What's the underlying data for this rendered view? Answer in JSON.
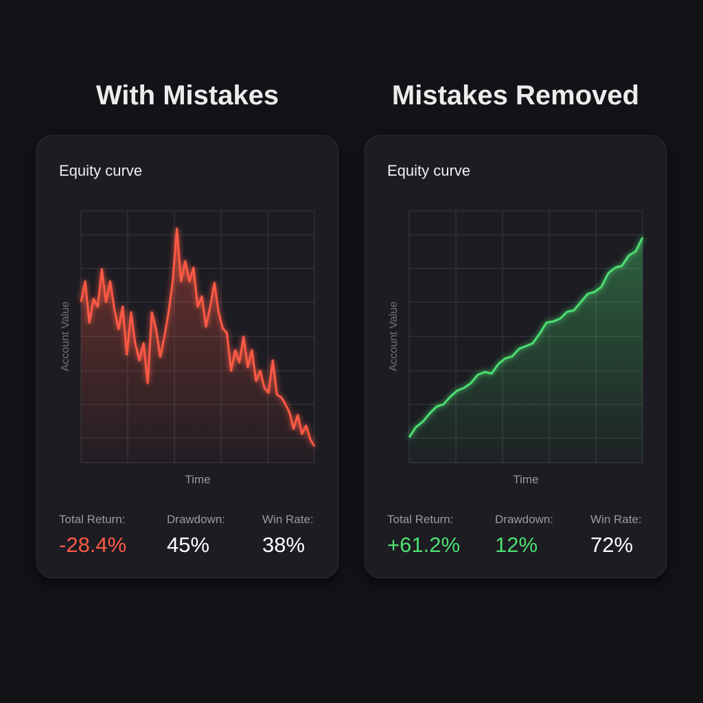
{
  "chart_data": [
    {
      "type": "line",
      "title": "With Mistakes",
      "subtitle": "Equity curve",
      "xlabel": "Time",
      "ylabel": "Account Value",
      "color": "#ff5a45",
      "ylim": [
        0,
        100
      ],
      "values": [
        63.8,
        72,
        55.6,
        65,
        62,
        76.8,
        63.8,
        72,
        61,
        53,
        62,
        43,
        59.7,
        47.4,
        40.6,
        47.4,
        31.6,
        59.7,
        53,
        42,
        50,
        59.7,
        72,
        92.9,
        72,
        80,
        72,
        77.4,
        62,
        66,
        54,
        62,
        71.4,
        59.7,
        53.4,
        51.5,
        36.5,
        44.7,
        39.8,
        50,
        37.9,
        44.7,
        32.4,
        36.5,
        29.7,
        27.8,
        40.6,
        27,
        26,
        23.4,
        20,
        13.4,
        18.9,
        11.4,
        14.7,
        9.3,
        6.5
      ],
      "stats": [
        {
          "label": "Total Return:",
          "value": "-28.4%",
          "color": "#ff5a45"
        },
        {
          "label": "Drawdown:",
          "value": "45%",
          "color": "#ffffff"
        },
        {
          "label": "Win Rate:",
          "value": "38%",
          "color": "#ffffff"
        }
      ]
    },
    {
      "type": "line",
      "title": "Mistakes Removed",
      "subtitle": "Equity curve",
      "xlabel": "Time",
      "ylabel": "Account Value",
      "color": "#4ee072",
      "ylim": [
        0,
        100
      ],
      "values": [
        10.1,
        14.2,
        16.3,
        19.6,
        22.3,
        23.2,
        26.2,
        28.6,
        29.7,
        31.6,
        34.9,
        36,
        35.4,
        39.2,
        41.4,
        42.2,
        45.2,
        46.3,
        47.4,
        51.2,
        55.6,
        56.1,
        57.2,
        59.9,
        60.5,
        63.8,
        67,
        67.8,
        69.8,
        75.2,
        77.4,
        78.2,
        82.3,
        83.9,
        89.4
      ],
      "stats": [
        {
          "label": "Total Return:",
          "value": "+61.2%",
          "color": "#4ee072"
        },
        {
          "label": "Drawdown:",
          "value": "12%",
          "color": "#4ee072"
        },
        {
          "label": "Win Rate:",
          "value": "72%",
          "color": "#ffffff"
        }
      ]
    }
  ]
}
